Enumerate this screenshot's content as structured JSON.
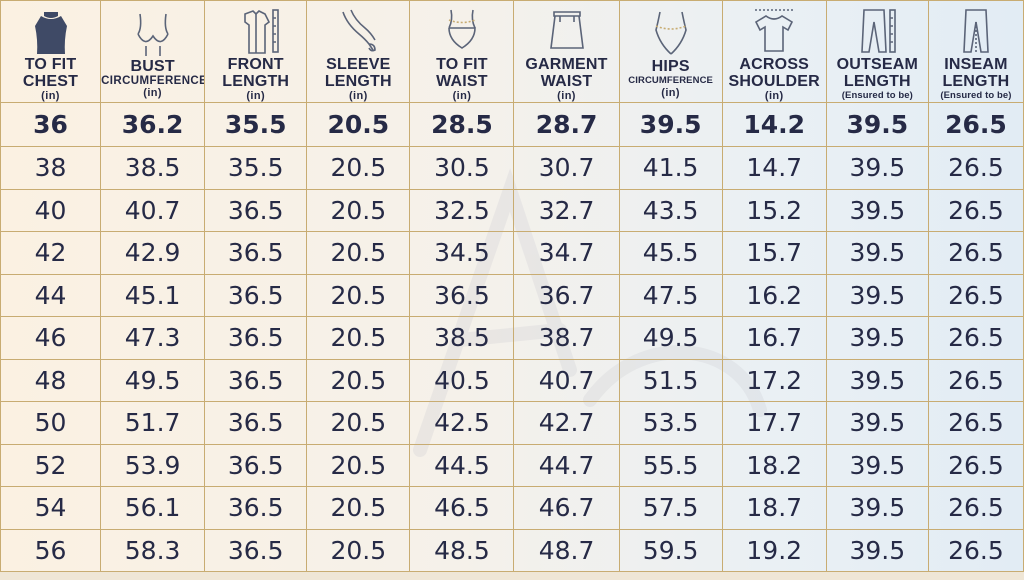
{
  "columns": [
    {
      "title": "TO FIT\nCHEST",
      "sub": "",
      "unit": "(in)",
      "icon": "tshirt-chest-icon"
    },
    {
      "title": "BUST",
      "sub": "CIRCUMFERENCE",
      "unit": "(in)",
      "icon": "bust-icon"
    },
    {
      "title": "FRONT\nLENGTH",
      "sub": "",
      "unit": "(in)",
      "icon": "shirt-ruler-icon"
    },
    {
      "title": "SLEEVE\nLENGTH",
      "sub": "",
      "unit": "(in)",
      "icon": "arm-icon"
    },
    {
      "title": "TO FIT\nWAIST",
      "sub": "",
      "unit": "(in)",
      "icon": "waist-icon"
    },
    {
      "title": "GARMENT\nWAIST",
      "sub": "",
      "unit": "(in)",
      "icon": "skirt-icon"
    },
    {
      "title": "HIPS",
      "sub": "CIRCUMFERENCE",
      "unit": "(in)",
      "icon": "hips-icon"
    },
    {
      "title": "ACROSS\nSHOULDER",
      "sub": "",
      "unit": "(in)",
      "icon": "tshirt-icon"
    },
    {
      "title": "OUTSEAM\nLENGTH",
      "sub": "",
      "unit": "(Ensured to be)",
      "icon": "pants-outseam-icon"
    },
    {
      "title": "INSEAM\nLENGTH",
      "sub": "",
      "unit": "(Ensured to be)",
      "icon": "pants-inseam-icon"
    }
  ],
  "rows": [
    [
      "36",
      "36.2",
      "35.5",
      "20.5",
      "28.5",
      "28.7",
      "39.5",
      "14.2",
      "39.5",
      "26.5"
    ],
    [
      "38",
      "38.5",
      "35.5",
      "20.5",
      "30.5",
      "30.7",
      "41.5",
      "14.7",
      "39.5",
      "26.5"
    ],
    [
      "40",
      "40.7",
      "36.5",
      "20.5",
      "32.5",
      "32.7",
      "43.5",
      "15.2",
      "39.5",
      "26.5"
    ],
    [
      "42",
      "42.9",
      "36.5",
      "20.5",
      "34.5",
      "34.7",
      "45.5",
      "15.7",
      "39.5",
      "26.5"
    ],
    [
      "44",
      "45.1",
      "36.5",
      "20.5",
      "36.5",
      "36.7",
      "47.5",
      "16.2",
      "39.5",
      "26.5"
    ],
    [
      "46",
      "47.3",
      "36.5",
      "20.5",
      "38.5",
      "38.7",
      "49.5",
      "16.7",
      "39.5",
      "26.5"
    ],
    [
      "48",
      "49.5",
      "36.5",
      "20.5",
      "40.5",
      "40.7",
      "51.5",
      "17.2",
      "39.5",
      "26.5"
    ],
    [
      "50",
      "51.7",
      "36.5",
      "20.5",
      "42.5",
      "42.7",
      "53.5",
      "17.7",
      "39.5",
      "26.5"
    ],
    [
      "52",
      "53.9",
      "36.5",
      "20.5",
      "44.5",
      "44.7",
      "55.5",
      "18.2",
      "39.5",
      "26.5"
    ],
    [
      "54",
      "56.1",
      "36.5",
      "20.5",
      "46.5",
      "46.7",
      "57.5",
      "18.7",
      "39.5",
      "26.5"
    ],
    [
      "56",
      "58.3",
      "36.5",
      "20.5",
      "48.5",
      "48.7",
      "59.5",
      "19.2",
      "39.5",
      "26.5"
    ]
  ],
  "colors": {
    "text": "#262a46",
    "border": "#c8ac72",
    "icon": "#5b6478",
    "filled_icon": "#3f4a66"
  }
}
